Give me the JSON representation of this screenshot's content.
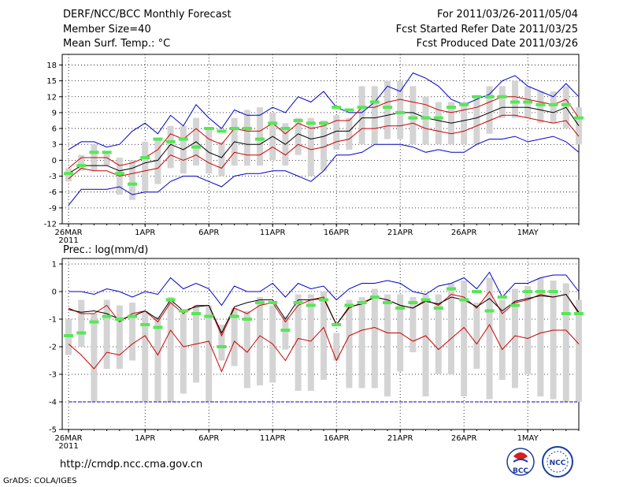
{
  "header": {
    "title": "DERF/NCC/BCC Monthly Forecast",
    "member_size": "Member Size=40",
    "variable": "Mean Surf. Temp.: °C",
    "period": "For 2011/03/26-2011/05/04",
    "started": "Fcst Started Refer Date 2011/03/25",
    "produced": "Fcst Produced Date 2011/03/26"
  },
  "precip_label": "Prec.: log(mm/d)",
  "footer": {
    "website": "http://cmdp.ncc.cma.gov.cn",
    "grads": "GrADS: COLA/IGES"
  },
  "logos": {
    "bcc": "BCC",
    "ncc": "NCC"
  },
  "colors": {
    "envelope": "#0000cc",
    "std_band": "#cc0000",
    "mean": "#000000",
    "observed": "#55e855",
    "box": "#d4d4d4",
    "grid": "#000000"
  },
  "chart_data": [
    {
      "type": "line",
      "title": "Mean Surf. Temp.: °C",
      "xlabel": "",
      "ylabel": "",
      "days": 40,
      "ylim": [
        -12,
        20
      ],
      "yticks": [
        -12,
        -9,
        -6,
        -3,
        0,
        3,
        6,
        9,
        12,
        15,
        18
      ],
      "xtick_labels": [
        {
          "day": 0,
          "label": "26MAR",
          "sub": "2011"
        },
        {
          "day": 6,
          "label": "1APR"
        },
        {
          "day": 11,
          "label": "6APR"
        },
        {
          "day": 16,
          "label": "11APR"
        },
        {
          "day": 21,
          "label": "16APR"
        },
        {
          "day": 26,
          "label": "21APR"
        },
        {
          "day": 31,
          "label": "26APR"
        },
        {
          "day": 36,
          "label": "1MAY"
        }
      ],
      "grid": true,
      "series": [
        {
          "name": "ensemble max",
          "role": "envelope",
          "values": [
            2,
            3.5,
            3.5,
            2.5,
            3,
            5.5,
            7,
            5,
            8.5,
            6.5,
            10.5,
            8,
            6,
            9.5,
            8.5,
            8.5,
            10,
            9,
            12,
            11,
            13,
            10,
            9,
            9,
            11,
            14,
            13,
            16.5,
            15.5,
            14,
            11.5,
            10.5,
            11.5,
            12.5,
            15,
            16,
            14,
            13,
            12,
            14.5,
            12
          ]
        },
        {
          "name": "ensemble min",
          "role": "envelope",
          "values": [
            -8.5,
            -5.5,
            -5.5,
            -5.5,
            -5,
            -6.5,
            -6,
            -6,
            -4,
            -3,
            -3,
            -4,
            -5,
            -3,
            -2.5,
            -2.5,
            -2,
            -2,
            -3,
            -4,
            -2,
            1,
            1,
            1.5,
            3,
            3,
            3,
            2.5,
            1.5,
            2,
            1.5,
            1.5,
            3,
            4,
            4,
            4.5,
            3.5,
            4,
            4.5,
            3.5,
            1.5
          ]
        },
        {
          "name": "mean + std",
          "role": "band",
          "values": [
            -1.5,
            0.5,
            0.5,
            0.5,
            -1,
            -0.5,
            0.5,
            2,
            5,
            4,
            6,
            4,
            3,
            6,
            5.5,
            5.5,
            7,
            5,
            7,
            6,
            6.5,
            7.5,
            7.5,
            10,
            10,
            11,
            11.5,
            11,
            10.5,
            9.5,
            9,
            9.5,
            10,
            11,
            12,
            12,
            11.5,
            11,
            10.5,
            11.5,
            8
          ]
        },
        {
          "name": "mean - std",
          "role": "band",
          "values": [
            -3.5,
            -1.5,
            -2,
            -2,
            -3,
            -2.5,
            -2,
            -1.5,
            1,
            0,
            1,
            -0.5,
            -1.5,
            1.5,
            1,
            1,
            2.5,
            1,
            3,
            2,
            2.5,
            3.5,
            4,
            6,
            6,
            6.5,
            6.5,
            7,
            6,
            5.5,
            5,
            5.5,
            6.5,
            7.5,
            8.5,
            8.5,
            8,
            7.5,
            7,
            7.5,
            4.5
          ]
        },
        {
          "name": "ensemble mean",
          "role": "mean",
          "values": [
            -2.5,
            -1,
            -1,
            -1,
            -2,
            -1.5,
            -0.5,
            0,
            3,
            2,
            3.5,
            1.5,
            0.5,
            3.5,
            3,
            3,
            4.5,
            3,
            5,
            4,
            4.5,
            5.5,
            5.5,
            8,
            8,
            8.5,
            9,
            9,
            8,
            7.5,
            7,
            7.5,
            8,
            9,
            10,
            10,
            10,
            9.5,
            9,
            10,
            6.5
          ]
        }
      ],
      "observed": [
        -2.5,
        -1,
        1.5,
        1.5,
        -2.5,
        -4.5,
        0.5,
        4,
        3.5,
        4,
        2.5,
        6,
        5.5,
        6,
        6,
        4,
        7,
        6,
        7.5,
        7,
        7,
        10,
        9.5,
        10,
        11,
        10,
        9,
        8,
        8,
        8,
        10,
        10.5,
        12,
        12,
        12,
        11,
        11,
        10.5,
        10.5,
        10.5,
        8
      ],
      "boxes": [
        [
          -4,
          -1.5
        ],
        [
          -2,
          1
        ],
        [
          -2,
          3
        ],
        [
          -1,
          1.5
        ],
        [
          -6.5,
          0.5
        ],
        [
          -7.5,
          0
        ],
        [
          -6,
          3.5
        ],
        [
          -4.5,
          4
        ],
        [
          -1.5,
          6.5
        ],
        [
          -2.5,
          6.5
        ],
        [
          -1,
          8
        ],
        [
          -2.5,
          6
        ],
        [
          -3,
          3.5
        ],
        [
          -1,
          8
        ],
        [
          -1,
          9.5
        ],
        [
          -1,
          10
        ],
        [
          0,
          9
        ],
        [
          -1,
          7
        ],
        [
          1,
          8
        ],
        [
          -3,
          8
        ],
        [
          -2,
          7.5
        ],
        [
          2,
          8.5
        ],
        [
          2,
          8
        ],
        [
          3,
          14
        ],
        [
          3,
          14
        ],
        [
          4,
          15
        ],
        [
          4,
          15
        ],
        [
          3,
          14
        ],
        [
          3,
          12
        ],
        [
          3,
          11
        ],
        [
          3,
          11
        ],
        [
          3,
          11
        ],
        [
          3,
          12
        ],
        [
          5,
          14
        ],
        [
          8,
          14
        ],
        [
          8,
          15
        ],
        [
          8,
          14
        ],
        [
          7,
          13
        ],
        [
          7,
          13
        ],
        [
          6,
          14
        ],
        [
          3,
          10
        ]
      ]
    },
    {
      "type": "line",
      "title": "Prec.: log(mm/d)",
      "xlabel": "",
      "ylabel": "",
      "days": 40,
      "ylim": [
        -5,
        1.2
      ],
      "yticks": [
        -5,
        -4,
        -3,
        -2,
        -1,
        0,
        1
      ],
      "xtick_labels": [
        {
          "day": 0,
          "label": "26MAR",
          "sub": "2011"
        },
        {
          "day": 6,
          "label": "1APR"
        },
        {
          "day": 11,
          "label": "6APR"
        },
        {
          "day": 16,
          "label": "11APR"
        },
        {
          "day": 21,
          "label": "16APR"
        },
        {
          "day": 26,
          "label": "21APR"
        },
        {
          "day": 31,
          "label": "26APR"
        },
        {
          "day": 36,
          "label": "1MAY"
        }
      ],
      "grid": true,
      "series": [
        {
          "name": "ensemble max",
          "role": "envelope",
          "values": [
            0,
            0,
            -0.1,
            0.1,
            0,
            -0.2,
            0,
            -0.1,
            0.5,
            0.1,
            0.3,
            0.1,
            -0.5,
            0.2,
            0,
            0,
            0.3,
            -0.2,
            0.3,
            0.1,
            0.2,
            -0.3,
            0.1,
            0.3,
            0.3,
            0.4,
            0.3,
            0,
            -0.1,
            0.2,
            0.3,
            0.5,
            0.1,
            0.7,
            -0.2,
            0.3,
            0.3,
            0.5,
            0.6,
            0.6,
            0
          ]
        },
        {
          "name": "ensemble min",
          "role": "envelope",
          "values": [
            -4,
            -4,
            -4,
            -4,
            -4,
            -4,
            -4,
            -4,
            -4,
            -4,
            -4,
            -4,
            -4,
            -4,
            -4,
            -4,
            -4,
            -4,
            -4,
            -4,
            -4,
            -4,
            -4,
            -4,
            -4,
            -4,
            -4,
            -4,
            -4,
            -4,
            -4,
            -4,
            -4,
            -4,
            -4,
            -4,
            -4,
            -4,
            -4,
            -4,
            -4
          ]
        },
        {
          "name": "mean + std",
          "role": "band",
          "values": [
            -0.6,
            -0.8,
            -0.8,
            -0.5,
            -1.1,
            -0.8,
            -0.7,
            -1.1,
            -0.4,
            -0.8,
            -0.5,
            -0.5,
            -1.6,
            -0.6,
            -0.8,
            -0.5,
            -0.4,
            -1.1,
            -0.5,
            -0.3,
            -0.2,
            -1.2,
            -0.6,
            -0.4,
            -0.2,
            -0.3,
            -0.5,
            -0.6,
            -0.3,
            -0.5,
            -0.1,
            -0.2,
            -0.6,
            0,
            -0.8,
            -0.4,
            -0.3,
            -0.1,
            -0.2,
            -0.1,
            -0.8
          ]
        },
        {
          "name": "mean - std",
          "role": "band",
          "values": [
            -1.9,
            -2.3,
            -2.8,
            -2.2,
            -2.3,
            -1.9,
            -1.6,
            -2.3,
            -1.4,
            -2,
            -1.9,
            -1.8,
            -2.9,
            -1.8,
            -2.2,
            -1.6,
            -1.9,
            -2.5,
            -1.7,
            -1.8,
            -1.3,
            -2.5,
            -1.6,
            -1.4,
            -1.3,
            -1.5,
            -1.5,
            -1.8,
            -1.6,
            -2.1,
            -1.7,
            -1.3,
            -1.9,
            -1.2,
            -2.1,
            -1.6,
            -1.7,
            -1.5,
            -1.4,
            -1.4,
            -1.9
          ]
        },
        {
          "name": "ensemble mean",
          "role": "mean",
          "values": [
            -0.65,
            -0.75,
            -0.7,
            -0.8,
            -1,
            -0.9,
            -0.7,
            -1,
            -0.3,
            -0.7,
            -0.55,
            -0.5,
            -1.5,
            -0.55,
            -0.4,
            -0.3,
            -0.3,
            -1,
            -0.3,
            -0.3,
            -0.25,
            -1.2,
            -0.55,
            -0.45,
            -0.2,
            -0.3,
            -0.5,
            -0.6,
            -0.35,
            -0.45,
            -0.2,
            -0.3,
            -0.55,
            -0.25,
            -0.7,
            -0.35,
            -0.25,
            -0.15,
            -0.2,
            -0.1,
            -0.75
          ]
        }
      ],
      "observed": [
        -1.6,
        -1.5,
        -1.1,
        -0.9,
        -1,
        -0.9,
        -1.2,
        -1.3,
        -0.3,
        -0.7,
        -0.8,
        -0.9,
        -2,
        -0.9,
        -1,
        -0.4,
        -0.4,
        -1.4,
        -0.4,
        -0.5,
        -0.3,
        -1.2,
        -0.5,
        -0.4,
        -0.2,
        -0.4,
        -0.6,
        -0.4,
        -0.3,
        -0.6,
        0.1,
        -0.3,
        0,
        -0.7,
        -0.2,
        -0.5,
        0,
        0,
        0,
        -0.8,
        -0.8
      ],
      "boxes": [
        [
          -2.3,
          -1
        ],
        [
          -2,
          -0.3
        ],
        [
          -4,
          -0.8
        ],
        [
          -2.8,
          -0.3
        ],
        [
          -2.8,
          -0.5
        ],
        [
          -2.5,
          -0.4
        ],
        [
          -4,
          -0.7
        ],
        [
          -4,
          -0.9
        ],
        [
          -4,
          -0.2
        ],
        [
          -3.7,
          -0.8
        ],
        [
          -3.3,
          -0.5
        ],
        [
          -4,
          -0.5
        ],
        [
          -2.5,
          -1.2
        ],
        [
          -2.7,
          -0.6
        ],
        [
          -3.5,
          -0.7
        ],
        [
          -3.4,
          -0.2
        ],
        [
          -3.3,
          -0.5
        ],
        [
          -2.1,
          -0.9
        ],
        [
          -3.6,
          -0.1
        ],
        [
          -3.6,
          -0.1
        ],
        [
          -3.2,
          0
        ],
        [
          -2.5,
          -1.5
        ],
        [
          -3.5,
          -0.3
        ],
        [
          -3.5,
          -0.2
        ],
        [
          -3.5,
          0.1
        ],
        [
          -3.8,
          -0.1
        ],
        [
          -2.9,
          -0.1
        ],
        [
          -2.2,
          -0.2
        ],
        [
          -3.8,
          -0.1
        ],
        [
          -3,
          -0.1
        ],
        [
          -3,
          0.3
        ],
        [
          -3.8,
          0.4
        ],
        [
          -2.8,
          -0.4
        ],
        [
          -3.9,
          0.5
        ],
        [
          -3.2,
          -0.3
        ],
        [
          -3.5,
          0.1
        ],
        [
          -3,
          0.2
        ],
        [
          -3.8,
          0.5
        ],
        [
          -3.9,
          0.4
        ],
        [
          -4,
          0.3
        ],
        [
          -4,
          -0.3
        ]
      ]
    }
  ]
}
